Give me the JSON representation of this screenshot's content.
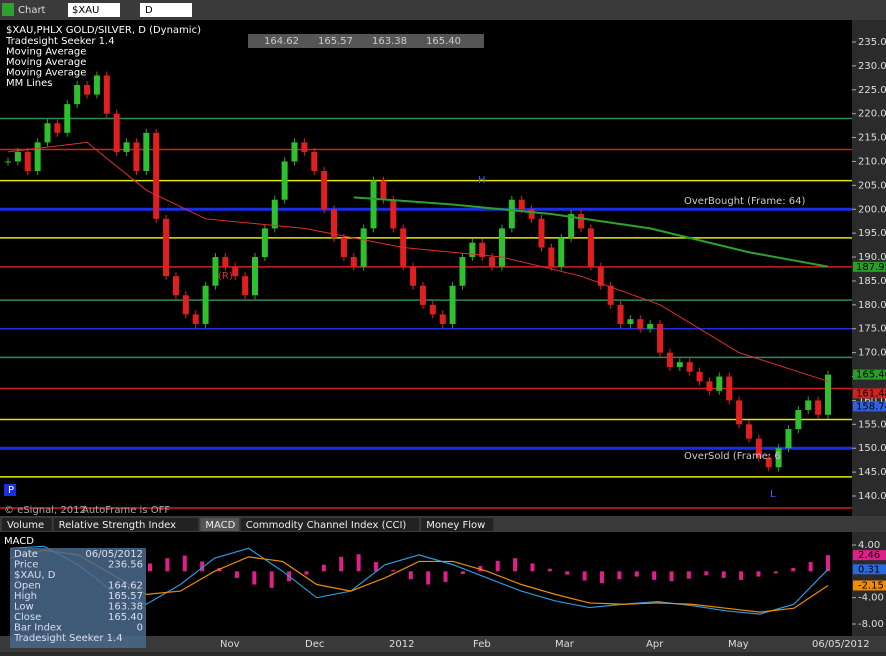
{
  "toolbar": {
    "title": "Chart",
    "symbol": "$XAU",
    "interval": "D"
  },
  "legend": {
    "symbol_line": "$XAU,PHLX GOLD/SILVER, D (Dynamic)",
    "studies": [
      "Tradesight Seeker 1.4",
      "Moving Average",
      "Moving Average",
      "Moving Average",
      "MM Lines"
    ]
  },
  "quote": [
    "164.62",
    "165.57",
    "163.38",
    "165.40"
  ],
  "chart_data": {
    "type": "candlestick",
    "closes": [
      210,
      212,
      208,
      214,
      218,
      216,
      222,
      226,
      224,
      228,
      220,
      212,
      214,
      208,
      216,
      198,
      186,
      182,
      178,
      176,
      184,
      190,
      188,
      186,
      182,
      190,
      196,
      202,
      210,
      214,
      212,
      208,
      200,
      194,
      190,
      188,
      196,
      206,
      202,
      196,
      188,
      184,
      180,
      178,
      176,
      184,
      190,
      193,
      190,
      188,
      196,
      202,
      200,
      198,
      192,
      188,
      194,
      199,
      196,
      188,
      184,
      180,
      176,
      177,
      175,
      176,
      170,
      167,
      168,
      166,
      164,
      162,
      165,
      160,
      155,
      152,
      148,
      146,
      150,
      154,
      158,
      160,
      157,
      165.4
    ],
    "ylim": [
      140,
      235
    ],
    "yticks": [
      {
        "value": 140,
        "label": "140.00"
      },
      {
        "value": 145,
        "label": "145.00"
      },
      {
        "value": 150,
        "label": "150.00"
      },
      {
        "value": 155,
        "label": "155.00"
      },
      {
        "value": 160,
        "label": "160.00"
      },
      {
        "value": 165,
        "label": "165.00"
      },
      {
        "value": 170,
        "label": "170.00"
      },
      {
        "value": 175,
        "label": "175.00"
      },
      {
        "value": 180,
        "label": "180.00"
      },
      {
        "value": 185,
        "label": "185.00"
      },
      {
        "value": 190,
        "label": "190.00"
      },
      {
        "value": 195,
        "label": "195.00"
      },
      {
        "value": 200,
        "label": "200.00"
      },
      {
        "value": 205,
        "label": "205.00"
      },
      {
        "value": 210,
        "label": "210.00"
      },
      {
        "value": 215,
        "label": "215.00"
      },
      {
        "value": 220,
        "label": "220.00"
      },
      {
        "value": 225,
        "label": "225.00"
      },
      {
        "value": 230,
        "label": "230.00"
      },
      {
        "value": 235,
        "label": "235.00"
      }
    ],
    "levels": [
      {
        "value": 219,
        "color": "#2e8b57"
      },
      {
        "value": 212.5,
        "color": "#d42020"
      },
      {
        "value": 206,
        "color": "#e6e600"
      },
      {
        "value": 200,
        "color": "#1a2ee6"
      },
      {
        "value": 194,
        "color": "#e6e600"
      },
      {
        "value": 187.95,
        "color": "#d42020"
      },
      {
        "value": 181,
        "color": "#2e8b57"
      },
      {
        "value": 175,
        "color": "#1a2ee6"
      },
      {
        "value": 169,
        "color": "#2e8b57"
      },
      {
        "value": 162.5,
        "color": "#d42020"
      },
      {
        "value": 156,
        "color": "#e6e600"
      },
      {
        "value": 150,
        "color": "#1a2ee6"
      },
      {
        "value": 144,
        "color": "#e6e600"
      },
      {
        "value": 137.5,
        "color": "#d42020"
      }
    ],
    "green_ma": {
      "x": [
        35,
        45,
        55,
        65,
        75,
        83
      ],
      "values": [
        202.5,
        201,
        199,
        196,
        191,
        188
      ],
      "color": "#2ea02e"
    },
    "red_ma": {
      "x": [
        0,
        8,
        14,
        20,
        30,
        40,
        50,
        58,
        66,
        74,
        83
      ],
      "values": [
        212,
        214,
        204,
        198,
        196,
        192,
        190,
        186,
        180,
        170,
        164
      ],
      "color": "#e03030"
    },
    "badges": [
      {
        "value": 187.95,
        "label": "187.95",
        "color": "#2a9d2a"
      },
      {
        "value": 165.4,
        "label": "165.40",
        "color": "#2a9d2a"
      },
      {
        "value": 161.48,
        "label": "161.48",
        "color": "#d42020"
      },
      {
        "value": 158.74,
        "label": "158.74",
        "color": "#3060e0"
      }
    ],
    "annotations": [
      "OverBought (Frame: 64)",
      "OverSold (Frame: 6",
      "H",
      "L",
      "(R)",
      "AutoFrame is OFF",
      "© eSignal, 2012",
      "P"
    ],
    "xlabels": [
      "Nov",
      "Dec",
      "2012",
      "Feb",
      "Mar",
      "Apr",
      "May",
      "06/05/2012"
    ]
  },
  "tabs": [
    "Volume",
    "Relative Strength Index",
    "MACD",
    "Commodity Channel Index (CCI)",
    "Money Flow"
  ],
  "macd": {
    "title": "MACD",
    "ylim": [
      -8,
      4
    ],
    "yticks": [
      {
        "value": 4,
        "label": "4.00"
      },
      {
        "value": -4,
        "label": "-4.00"
      },
      {
        "value": -8,
        "label": "-8.00"
      }
    ],
    "hist": [
      1.2,
      2,
      2.4,
      1.5,
      0.5,
      -1,
      -2,
      -2.5,
      -1.5,
      -0.5,
      1,
      2.2,
      2.6,
      1.4,
      0.2,
      -1.2,
      -2,
      -1.6,
      -0.4,
      0.8,
      1.6,
      2,
      1.2,
      0.4,
      -0.5,
      -1.4,
      -1.8,
      -1.2,
      -0.8,
      -1.3,
      -1.5,
      -1.1,
      -0.6,
      -1,
      -1.3,
      -0.8,
      -0.3,
      0.5,
      1.4,
      2.46
    ],
    "macd_line": [
      3.5,
      3.8,
      1,
      -3,
      -5,
      -2,
      2,
      3.5,
      0,
      -4,
      -3,
      1,
      2.5,
      1,
      -1,
      -3,
      -4.5,
      -5.5,
      -5,
      -4.6,
      -5.2,
      -6,
      -6.5,
      -5,
      0.31
    ],
    "signal_line": [
      2,
      3.2,
      2.5,
      -0.5,
      -3.5,
      -3,
      0,
      2.2,
      1.5,
      -2,
      -3,
      -1,
      1.5,
      1.5,
      0,
      -2,
      -3.5,
      -4.8,
      -5,
      -4.8,
      -5,
      -5.6,
      -6.2,
      -5.6,
      -2.15
    ],
    "badges": [
      {
        "value": 2.46,
        "label": "2.46",
        "color": "#e0208a"
      },
      {
        "value": 0.31,
        "label": "0.31",
        "color": "#2a6ae0"
      },
      {
        "value": -2.15,
        "label": "-2.15",
        "color": "#f08c00"
      }
    ]
  },
  "data_window": {
    "rows": [
      [
        "Date",
        "06/05/2012"
      ],
      [
        "Price",
        "236.56"
      ],
      [
        "$XAU, D",
        ""
      ],
      [
        "Open",
        "164.62"
      ],
      [
        "High",
        "165.57"
      ],
      [
        "Low",
        "163.38"
      ],
      [
        "Close",
        "165.40"
      ],
      [
        "Bar Index",
        "0"
      ],
      [
        "Tradesight Seeker 1.4",
        ""
      ]
    ]
  }
}
